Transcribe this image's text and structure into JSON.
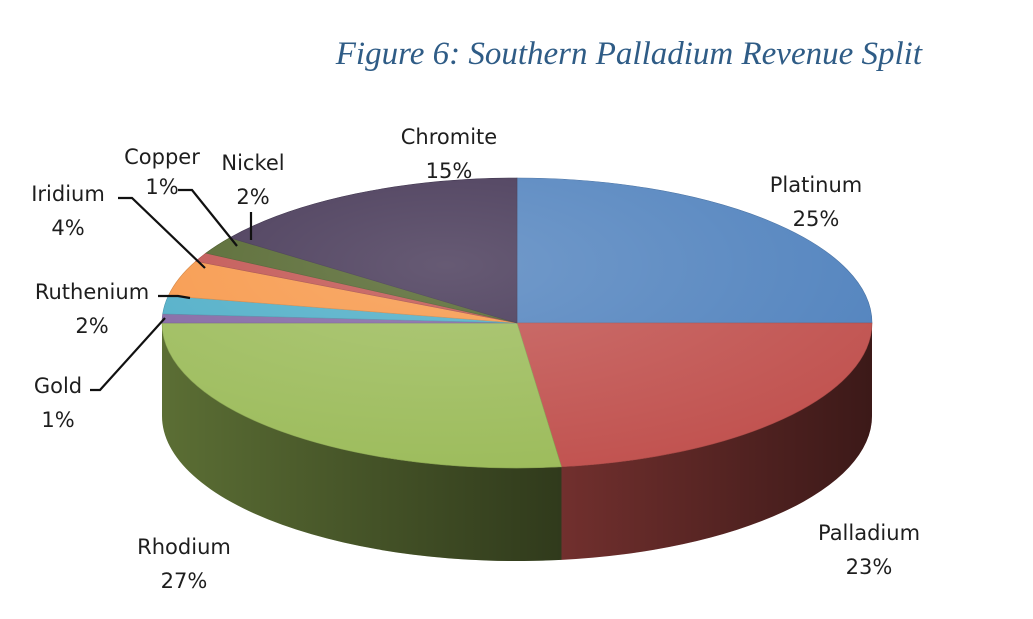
{
  "chart_data": {
    "type": "pie",
    "title": "Figure 6: Southern Palladium Revenue Split",
    "style": "3d-exploded-depth",
    "slices": [
      {
        "name": "Platinum",
        "value": 25,
        "label": "25%",
        "color": "#4f81bd"
      },
      {
        "name": "Palladium",
        "value": 23,
        "label": "23%",
        "color": "#c0504d"
      },
      {
        "name": "Rhodium",
        "value": 27,
        "label": "27%",
        "color": "#9bbb59"
      },
      {
        "name": "Gold",
        "value": 1,
        "label": "1%",
        "color": "#8064a2"
      },
      {
        "name": "Ruthenium",
        "value": 2,
        "label": "2%",
        "color": "#4bacc6"
      },
      {
        "name": "Iridium",
        "value": 4,
        "label": "4%",
        "color": "#f79646"
      },
      {
        "name": "Copper",
        "value": 1,
        "label": "1%",
        "color": "#c0504d"
      },
      {
        "name": "Nickel",
        "value": 2,
        "label": "2%",
        "color": "#4f6228"
      },
      {
        "name": "Chromite",
        "value": 15,
        "label": "15%",
        "color": "#403151"
      }
    ]
  }
}
